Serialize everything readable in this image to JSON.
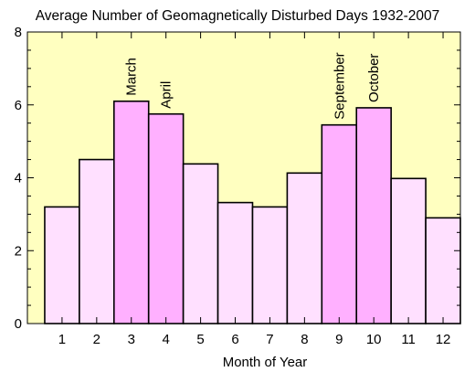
{
  "chart_data": {
    "type": "bar",
    "title": "Average Number of Geomagnetically Disturbed Days 1932-2007",
    "xlabel": "Month of Year",
    "ylabel": "",
    "categories": [
      "1",
      "2",
      "3",
      "4",
      "5",
      "6",
      "7",
      "8",
      "9",
      "10",
      "11",
      "12"
    ],
    "values": [
      3.2,
      4.5,
      6.1,
      5.75,
      4.38,
      3.32,
      3.2,
      4.13,
      5.45,
      5.92,
      3.98,
      2.9
    ],
    "ylim": [
      0,
      8
    ],
    "yticks": [
      "0",
      "2",
      "4",
      "6",
      "8"
    ],
    "xlim": [
      0,
      12.5
    ],
    "grid": false,
    "annotations": [
      {
        "category": "3",
        "text": "March"
      },
      {
        "category": "4",
        "text": "April"
      },
      {
        "category": "9",
        "text": "September"
      },
      {
        "category": "10",
        "text": "October"
      }
    ],
    "colors": {
      "background": "#ffffc0",
      "normal_bar": "#ffe0ff",
      "highlight_bar": "#ffb0ff",
      "bar_edge": "#000000"
    },
    "highlighted_categories": [
      "3",
      "4",
      "9",
      "10"
    ]
  }
}
